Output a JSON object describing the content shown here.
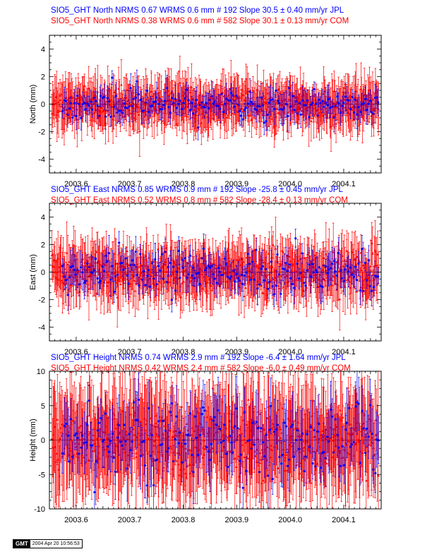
{
  "colors": {
    "jpl": "#0000ff",
    "com": "#ff0000",
    "axis": "#000000"
  },
  "gmt_stamp": {
    "logo": "GMT",
    "timestamp": "2004 Apr 20 10:56:53"
  },
  "chart_data": [
    {
      "type": "scatter",
      "ylabel": "North (mm)",
      "xlim": [
        2003.55,
        2004.17
      ],
      "ylim": [
        -5,
        5
      ],
      "xticks": [
        2003.6,
        2003.7,
        2003.8,
        2003.9,
        2004.0,
        2004.1
      ],
      "xtick_labels": [
        "2003.6",
        "2003.7",
        "2003.8",
        "2003.9",
        "2004.0",
        "2004.1"
      ],
      "yticks": [
        -4,
        -2,
        0,
        2,
        4
      ],
      "ytick_labels": [
        "-4",
        "-2",
        "0",
        "2",
        "4"
      ],
      "legend": [
        "SIO5_GHT North NRMS 0.67 WRMS  0.6 mm # 192 Slope   30.5 ±  0.40 mm/yr JPL",
        "SIO5_GHT North NRMS 0.38 WRMS  0.6 mm # 582 Slope   30.1 ±  0.13 mm/yr COM"
      ],
      "series": [
        {
          "color": "#0000ff",
          "n": 192,
          "x_start": 2003.575,
          "x_end": 2004.165,
          "slope": 0.0,
          "intercept": 0.0,
          "scatter": 0.6,
          "error": 0.8,
          "seed": 11
        },
        {
          "color": "#ff0000",
          "n": 582,
          "x_start": 2003.555,
          "x_end": 2004.165,
          "slope": 0.0,
          "intercept": 0.0,
          "scatter": 0.6,
          "error": 1.4,
          "seed": 23
        }
      ]
    },
    {
      "type": "scatter",
      "ylabel": "East (mm)",
      "xlim": [
        2003.55,
        2004.17
      ],
      "ylim": [
        -5,
        5
      ],
      "xticks": [
        2003.6,
        2003.7,
        2003.8,
        2003.9,
        2004.0,
        2004.1
      ],
      "xtick_labels": [
        "2003.6",
        "2003.7",
        "2003.8",
        "2003.9",
        "2004.0",
        "2004.1"
      ],
      "yticks": [
        -4,
        -2,
        0,
        2,
        4
      ],
      "ytick_labels": [
        "-4",
        "-2",
        "0",
        "2",
        "4"
      ],
      "legend": [
        "SIO5_GHT East NRMS 0.85 WRMS  0.9 mm # 192 Slope  -25.8 ±  0.45 mm/yr JPL",
        "SIO5_GHT East NRMS 0.52 WRMS  0.8 mm # 582 Slope  -28.4 ±  0.13 mm/yr COM"
      ],
      "series": [
        {
          "color": "#0000ff",
          "n": 192,
          "x_start": 2003.575,
          "x_end": 2004.165,
          "slope": 0.0,
          "intercept": 0.0,
          "scatter": 0.9,
          "error": 0.9,
          "seed": 37
        },
        {
          "color": "#ff0000",
          "n": 582,
          "x_start": 2003.555,
          "x_end": 2004.165,
          "slope": 0.0,
          "intercept": 0.0,
          "scatter": 0.8,
          "error": 1.6,
          "seed": 53
        }
      ]
    },
    {
      "type": "scatter",
      "ylabel": "Height (mm)",
      "xlim": [
        2003.55,
        2004.17
      ],
      "ylim": [
        -10,
        10
      ],
      "xticks": [
        2003.6,
        2003.7,
        2003.8,
        2003.9,
        2004.0,
        2004.1
      ],
      "xtick_labels": [
        "2003.6",
        "2003.7",
        "2003.8",
        "2003.9",
        "2004.0",
        "2004.1"
      ],
      "yticks": [
        -10,
        -5,
        0,
        5,
        10
      ],
      "ytick_labels": [
        "-10",
        "-5",
        "0",
        "5",
        "10"
      ],
      "legend": [
        "SIO5_GHT Height NRMS 0.74 WRMS  2.9 mm # 192 Slope   -6.4 ±  1.64 mm/yr JPL",
        "SIO5_GHT Height NRMS 0.42 WRMS  2.4 mm # 582 Slope   -6.0 ±  0.49 mm/yr COM"
      ],
      "series": [
        {
          "color": "#0000ff",
          "n": 192,
          "x_start": 2003.575,
          "x_end": 2004.165,
          "slope": 0.0,
          "intercept": 0.0,
          "scatter": 2.9,
          "error": 3.5,
          "seed": 71
        },
        {
          "color": "#ff0000",
          "n": 582,
          "x_start": 2003.555,
          "x_end": 2004.165,
          "slope": 0.0,
          "intercept": 0.0,
          "scatter": 2.4,
          "error": 6.0,
          "seed": 89
        }
      ]
    }
  ]
}
